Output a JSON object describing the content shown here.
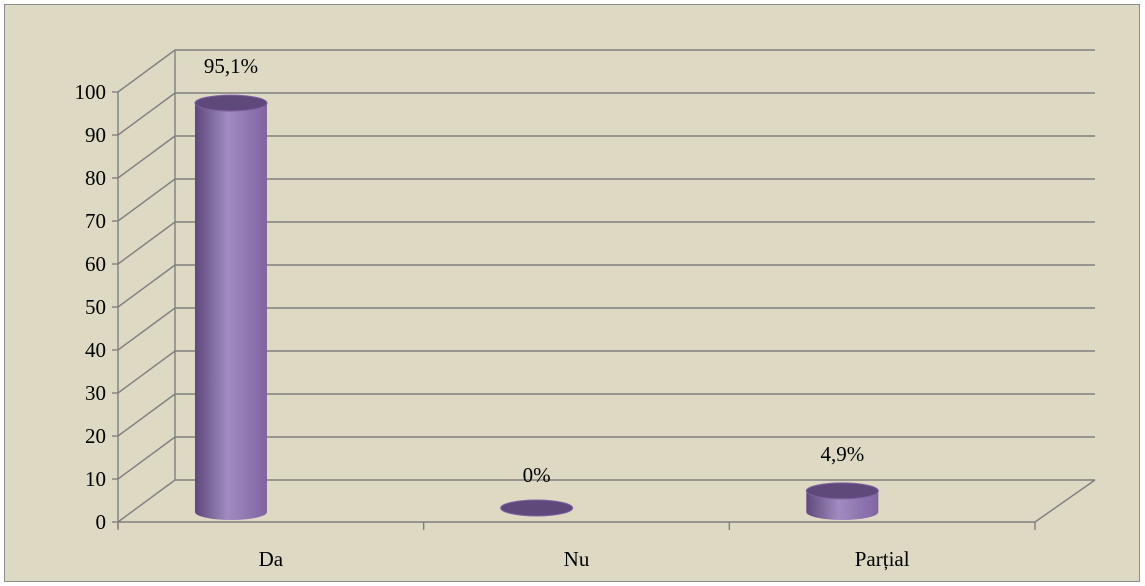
{
  "chart_data": {
    "type": "bar",
    "style": "3d-cylinder",
    "categories": [
      "Da",
      "Nu",
      "Parțial"
    ],
    "values": [
      95.1,
      0,
      4.9
    ],
    "data_labels": [
      "95,1%",
      "0%",
      "4,9%"
    ],
    "yticks": [
      "0",
      "10",
      "20",
      "30",
      "40",
      "50",
      "60",
      "70",
      "80",
      "90",
      "100"
    ],
    "ylim": [
      0,
      100
    ],
    "title": "",
    "xlabel": "",
    "ylabel": "",
    "grid": true,
    "legend": "none"
  },
  "colors": {
    "background": "#ddd9c3",
    "bar_fill": "#8064a2",
    "bar_dark": "#5f497a",
    "bar_light": "#a08bc0",
    "grid": "#7f7f7f"
  }
}
